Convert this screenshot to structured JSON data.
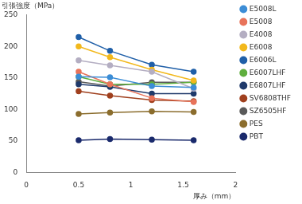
{
  "chart_data": {
    "type": "line",
    "y_label": "引張強度（MPa）",
    "x_label": "厚み（mm）",
    "x": [
      0.5,
      0.8,
      1.2,
      1.6
    ],
    "series": [
      {
        "name": "E5008L",
        "color": "#3c8dd6",
        "values": [
          152,
          151,
          137,
          135
        ]
      },
      {
        "name": "E5008",
        "color": "#e8735a",
        "values": [
          160,
          140,
          118,
          112
        ]
      },
      {
        "name": "E4008",
        "color": "#b4aec2",
        "values": [
          178,
          170,
          160,
          133
        ]
      },
      {
        "name": "E6008",
        "color": "#f2b81c",
        "values": [
          200,
          183,
          163,
          146
        ]
      },
      {
        "name": "E6006L",
        "color": "#1f5fa8",
        "values": [
          215,
          193,
          171,
          160
        ]
      },
      {
        "name": "E6007LHF",
        "color": "#5fae3e",
        "values": [
          152,
          140,
          140,
          143
        ]
      },
      {
        "name": "E6807LHF",
        "color": "#1f3a6b",
        "values": [
          140,
          136,
          125,
          125
        ]
      },
      {
        "name": "SV6808THF",
        "color": "#a0401e",
        "values": [
          129,
          122,
          115,
          113
        ]
      },
      {
        "name": "SZ6505HF",
        "color": "#5a5a5a",
        "values": [
          144,
          137,
          143,
          143
        ]
      },
      {
        "name": "PES",
        "color": "#8b6d2d",
        "values": [
          93,
          95,
          97,
          96
        ]
      },
      {
        "name": "PBT",
        "color": "#1a2a6c",
        "values": [
          51,
          53,
          52,
          51
        ]
      }
    ],
    "xlim": [
      0,
      2
    ],
    "xticks": [
      0,
      0.5,
      1,
      1.5,
      2
    ],
    "ylim": [
      0,
      250
    ],
    "yticks": [
      0,
      50,
      100,
      150,
      200,
      250
    ],
    "grid": false,
    "legend": "right",
    "marker": "circle"
  }
}
